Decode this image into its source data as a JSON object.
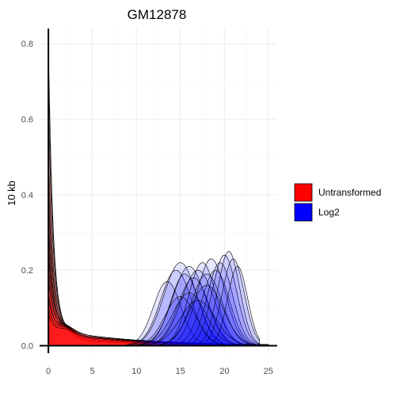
{
  "chart_data": {
    "type": "area",
    "title": "GM12878",
    "xlabel": "",
    "ylabel": "10 kb",
    "xlim": [
      -1,
      26
    ],
    "ylim": [
      -0.02,
      0.84
    ],
    "x_ticks": [
      0,
      5,
      10,
      15,
      20,
      25
    ],
    "y_ticks": [
      0.0,
      0.2,
      0.4,
      0.6,
      0.8
    ],
    "grid": true,
    "legend_position": "right",
    "series": [
      {
        "name": "Untransformed",
        "color": "#ff0000",
        "description_peak_x": 0.1,
        "curves": [
          {
            "peak": 0.78,
            "tail": 0.02
          },
          {
            "peak": 0.7,
            "tail": 0.025
          },
          {
            "peak": 0.6,
            "tail": 0.03
          },
          {
            "peak": 0.48,
            "tail": 0.035
          },
          {
            "peak": 0.42,
            "tail": 0.03
          },
          {
            "peak": 0.35,
            "tail": 0.04
          },
          {
            "peak": 0.3,
            "tail": 0.035
          },
          {
            "peak": 0.26,
            "tail": 0.04
          },
          {
            "peak": 0.22,
            "tail": 0.04
          },
          {
            "peak": 0.19,
            "tail": 0.045
          },
          {
            "peak": 0.16,
            "tail": 0.04
          },
          {
            "peak": 0.13,
            "tail": 0.045
          },
          {
            "peak": 0.1,
            "tail": 0.04
          },
          {
            "peak": 0.08,
            "tail": 0.045
          },
          {
            "peak": 0.06,
            "tail": 0.04
          },
          {
            "peak": 0.05,
            "tail": 0.035
          }
        ]
      },
      {
        "name": "Log2",
        "color": "#0000ff",
        "curves": [
          {
            "center": 13.5,
            "peak": 0.17,
            "width": 2.5
          },
          {
            "center": 14.5,
            "peak": 0.2,
            "width": 2.8
          },
          {
            "center": 15.0,
            "peak": 0.22,
            "width": 3.0
          },
          {
            "center": 15.5,
            "peak": 0.19,
            "width": 2.6
          },
          {
            "center": 16.0,
            "peak": 0.21,
            "width": 3.0
          },
          {
            "center": 16.5,
            "peak": 0.18,
            "width": 2.8
          },
          {
            "center": 17.0,
            "peak": 0.2,
            "width": 3.0
          },
          {
            "center": 17.5,
            "peak": 0.22,
            "width": 2.5
          },
          {
            "center": 18.0,
            "peak": 0.19,
            "width": 2.8
          },
          {
            "center": 18.5,
            "peak": 0.23,
            "width": 2.6
          },
          {
            "center": 19.0,
            "peak": 0.2,
            "width": 2.5
          },
          {
            "center": 19.5,
            "peak": 0.22,
            "width": 2.3
          },
          {
            "center": 20.0,
            "peak": 0.24,
            "width": 2.2
          },
          {
            "center": 20.5,
            "peak": 0.25,
            "width": 2.0
          },
          {
            "center": 21.0,
            "peak": 0.23,
            "width": 2.0
          },
          {
            "center": 21.5,
            "peak": 0.21,
            "width": 1.8
          },
          {
            "center": 16.0,
            "peak": 0.14,
            "width": 3.0
          },
          {
            "center": 17.0,
            "peak": 0.12,
            "width": 3.2
          },
          {
            "center": 18.0,
            "peak": 0.16,
            "width": 3.0
          },
          {
            "center": 15.0,
            "peak": 0.13,
            "width": 2.8
          }
        ]
      }
    ],
    "legend": [
      {
        "label": "Untransformed",
        "color": "#ff0000"
      },
      {
        "label": "Log2",
        "color": "#0000ff"
      }
    ]
  }
}
